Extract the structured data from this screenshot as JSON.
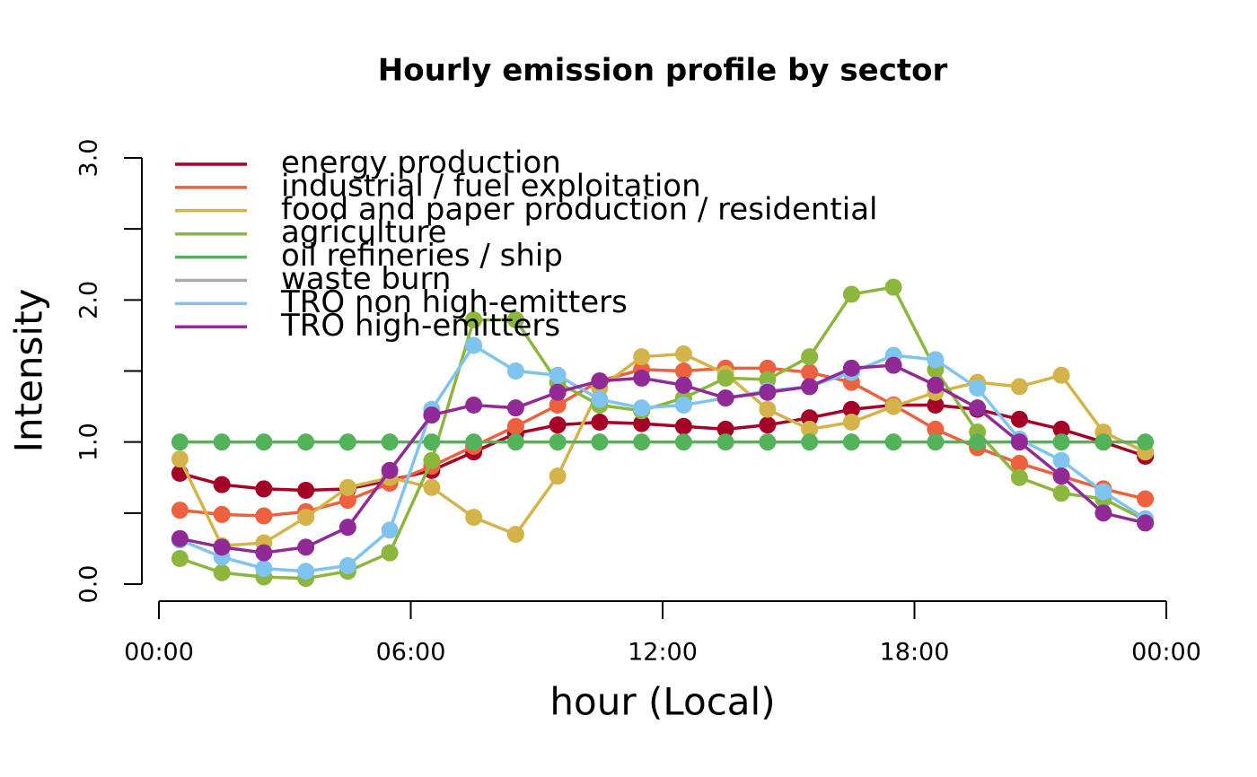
{
  "chart_data": {
    "type": "line",
    "title": "Hourly emission profile by sector",
    "xlabel": "hour (Local)",
    "ylabel": "Intensity",
    "x": [
      0.5,
      1.5,
      2.5,
      3.5,
      4.5,
      5.5,
      6.5,
      7.5,
      8.5,
      9.5,
      10.5,
      11.5,
      12.5,
      13.5,
      14.5,
      15.5,
      16.5,
      17.5,
      18.5,
      19.5,
      20.5,
      21.5,
      22.5,
      23.5
    ],
    "xlim": [
      0,
      24
    ],
    "xticks": [
      {
        "value": 0,
        "label": "00:00"
      },
      {
        "value": 6,
        "label": "06:00"
      },
      {
        "value": 12,
        "label": "12:00"
      },
      {
        "value": 18,
        "label": "18:00"
      },
      {
        "value": 24,
        "label": "00:00"
      }
    ],
    "ylim": [
      0,
      3
    ],
    "yticks": [
      {
        "value": 0,
        "label": "0.0"
      },
      {
        "value": 1,
        "label": "1.0"
      },
      {
        "value": 2,
        "label": "2.0"
      },
      {
        "value": 3,
        "label": "3.0"
      }
    ],
    "yminor_ticks": [
      0.5,
      1.5,
      2.5
    ],
    "legend": "topleft",
    "series": [
      {
        "name": "energy production",
        "color": "#a50026",
        "values": [
          0.78,
          0.7,
          0.67,
          0.66,
          0.67,
          0.73,
          0.8,
          0.93,
          1.06,
          1.12,
          1.14,
          1.13,
          1.11,
          1.09,
          1.12,
          1.17,
          1.23,
          1.26,
          1.26,
          1.23,
          1.16,
          1.09,
          1.0,
          0.9
        ]
      },
      {
        "name": "industrial / fuel exploitation",
        "color": "#ee613e",
        "values": [
          0.52,
          0.49,
          0.48,
          0.51,
          0.59,
          0.71,
          0.83,
          0.97,
          1.11,
          1.26,
          1.43,
          1.51,
          1.5,
          1.52,
          1.52,
          1.49,
          1.42,
          1.26,
          1.09,
          0.96,
          0.85,
          0.76,
          0.67,
          0.6
        ]
      },
      {
        "name": "food and paper production / residential",
        "color": "#d4b44a",
        "values": [
          0.88,
          0.27,
          0.29,
          0.47,
          0.68,
          0.75,
          0.68,
          0.47,
          0.35,
          0.76,
          1.38,
          1.6,
          1.62,
          1.48,
          1.23,
          1.09,
          1.14,
          1.25,
          1.35,
          1.42,
          1.39,
          1.47,
          1.07,
          0.93
        ]
      },
      {
        "name": "agriculture",
        "color": "#8cb63c",
        "values": [
          0.18,
          0.08,
          0.05,
          0.04,
          0.09,
          0.22,
          0.87,
          1.86,
          1.86,
          1.42,
          1.26,
          1.22,
          1.31,
          1.45,
          1.44,
          1.6,
          2.04,
          2.09,
          1.51,
          1.07,
          0.75,
          0.64,
          0.6,
          0.45
        ]
      },
      {
        "name": "oil refineries / ship",
        "color": "#52b35a",
        "values": [
          1,
          1,
          1,
          1,
          1,
          1,
          1,
          1,
          1,
          1,
          1,
          1,
          1,
          1,
          1,
          1,
          1,
          1,
          1,
          1,
          1,
          1,
          1,
          1
        ]
      },
      {
        "name": "waste burn",
        "color": "#aaaaaa",
        "values": [
          null,
          null,
          null,
          null,
          null,
          null,
          null,
          null,
          null,
          null,
          null,
          null,
          null,
          null,
          null,
          null,
          null,
          null,
          null,
          null,
          null,
          null,
          null,
          null
        ]
      },
      {
        "name": "TRO non high-emitters",
        "color": "#7ec4ee",
        "values": [
          0.31,
          0.19,
          0.11,
          0.09,
          0.13,
          0.38,
          1.23,
          1.68,
          1.5,
          1.47,
          1.3,
          1.24,
          1.26,
          1.31,
          1.36,
          1.39,
          1.49,
          1.61,
          1.58,
          1.38,
          1.02,
          0.87,
          0.65,
          0.46
        ]
      },
      {
        "name": "TRO high-emitters",
        "color": "#912a96",
        "values": [
          0.32,
          0.26,
          0.22,
          0.26,
          0.4,
          0.8,
          1.19,
          1.26,
          1.24,
          1.35,
          1.43,
          1.45,
          1.4,
          1.31,
          1.35,
          1.39,
          1.52,
          1.54,
          1.4,
          1.24,
          1.0,
          0.76,
          0.5,
          0.43
        ]
      }
    ]
  }
}
